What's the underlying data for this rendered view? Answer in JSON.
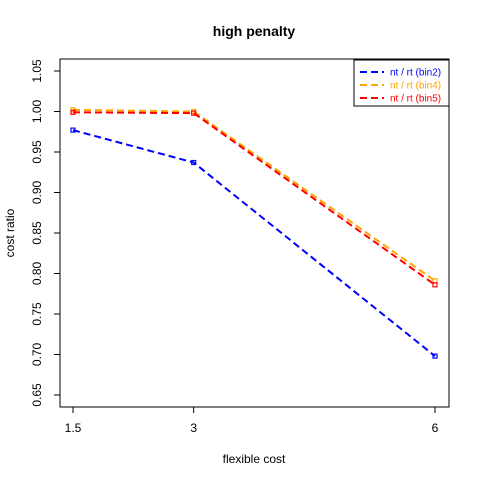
{
  "chart_data": {
    "type": "line",
    "title": "high penalty",
    "xlabel": "flexible cost",
    "ylabel": "cost ratio",
    "x": [
      1.5,
      3,
      6
    ],
    "x_tick_labels": [
      "1.5",
      "3",
      "6"
    ],
    "ylim": [
      0.65,
      1.05
    ],
    "y_ticks": [
      "0.65",
      "0.70",
      "0.75",
      "0.80",
      "0.85",
      "0.90",
      "0.95",
      "1.00",
      "1.05"
    ],
    "grid": false,
    "legend_position": "top-right",
    "series": [
      {
        "name": "nt / rt (bin2)",
        "color": "#0000ff",
        "values": [
          0.977,
          0.937,
          0.698
        ]
      },
      {
        "name": "nt / rt (bin4)",
        "color": "#ffa500",
        "values": [
          1.002,
          1.0,
          0.791
        ]
      },
      {
        "name": "nt / rt (bin5)",
        "color": "#ff0000",
        "values": [
          0.999,
          0.998,
          0.786
        ]
      }
    ]
  }
}
